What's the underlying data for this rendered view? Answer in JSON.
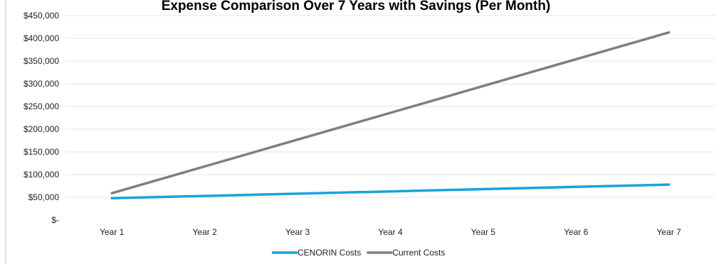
{
  "chart_data": {
    "type": "line",
    "title": "Expense Comparison Over 7 Years with Savings (Per Month)",
    "xlabel": "",
    "ylabel": "",
    "categories": [
      "Year 1",
      "Year 2",
      "Year 3",
      "Year 4",
      "Year 5",
      "Year 6",
      "Year 7"
    ],
    "series": [
      {
        "name": "CENORIN Costs",
        "color": "#1aa3dc",
        "values": [
          48000,
          53000,
          58000,
          63000,
          68000,
          73000,
          78000
        ]
      },
      {
        "name": "Current Costs",
        "color": "#7f7f7f",
        "values": [
          59000,
          118000,
          177000,
          236000,
          295000,
          354000,
          413000
        ]
      }
    ],
    "ylim": [
      0,
      450000
    ],
    "yticks": [
      0,
      50000,
      100000,
      150000,
      200000,
      250000,
      300000,
      350000,
      400000,
      450000
    ],
    "ytick_labels": [
      "$-",
      "$50,000",
      "$100,000",
      "$150,000",
      "$200,000",
      "$250,000",
      "$300,000",
      "$350,000",
      "$400,000",
      "$450,000"
    ],
    "grid": true,
    "legend_position": "bottom"
  }
}
